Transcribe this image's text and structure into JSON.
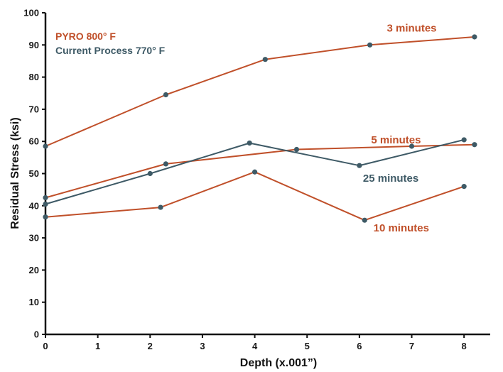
{
  "chart_data": {
    "type": "line",
    "xlabel": "Depth (x.001”)",
    "ylabel": "Residual Stress (ksi)",
    "xlim": [
      0,
      8.5
    ],
    "ylim": [
      0,
      100
    ],
    "x_ticks": [
      0,
      1,
      2,
      3,
      4,
      5,
      6,
      7,
      8
    ],
    "y_ticks": [
      0,
      10,
      20,
      30,
      40,
      50,
      60,
      70,
      80,
      90,
      100
    ],
    "legend": [
      {
        "label": "PYRO 800° F",
        "color": "#c0502a"
      },
      {
        "label": "Current Process 770° F",
        "color": "#3e5a66"
      }
    ],
    "legend_position": "top-left",
    "series": [
      {
        "name": "3 minutes",
        "color": "#c0502a",
        "marker_color": "#3e5a66",
        "x": [
          0,
          2.3,
          4.2,
          6.2,
          8.2
        ],
        "y": [
          58.5,
          74.5,
          85.5,
          90,
          92.5
        ]
      },
      {
        "name": "5 minutes",
        "color": "#c0502a",
        "marker_color": "#3e5a66",
        "x": [
          0,
          2.3,
          4.8,
          7,
          8.2
        ],
        "y": [
          42.5,
          53,
          57.5,
          58.5,
          59
        ]
      },
      {
        "name": "25 minutes",
        "color": "#3e5a66",
        "marker_color": "#3e5a66",
        "x": [
          0,
          2,
          3.9,
          6,
          8
        ],
        "y": [
          40.5,
          50,
          59.5,
          52.5,
          60.5
        ]
      },
      {
        "name": "10 minutes",
        "color": "#c0502a",
        "marker_color": "#3e5a66",
        "x": [
          0,
          2.2,
          4,
          6.1,
          8
        ],
        "y": [
          36.5,
          39.5,
          50.5,
          35.5,
          46
        ]
      }
    ],
    "annotations": [
      {
        "text": "3 minutes",
        "color": "#c0502a",
        "x": 7.0,
        "y": 94.2
      },
      {
        "text": "5 minutes",
        "color": "#c0502a",
        "x": 6.7,
        "y": 59.4
      },
      {
        "text": "25 minutes",
        "color": "#3e5a66",
        "x": 6.6,
        "y": 47.5
      },
      {
        "text": "10 minutes",
        "color": "#c0502a",
        "x": 6.8,
        "y": 32.0
      }
    ]
  }
}
